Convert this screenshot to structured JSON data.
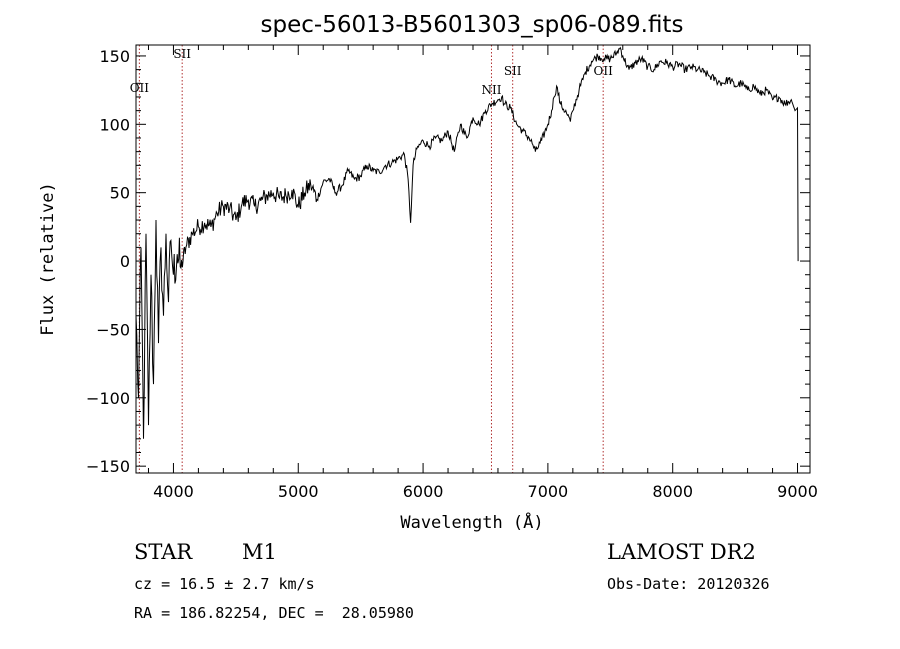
{
  "chart_data": {
    "type": "line",
    "title": "spec-56013-B5601303_sp06-089.fits",
    "xlabel": "Wavelength (Å)",
    "ylabel": "Flux (relative)",
    "xlim": [
      3700,
      9100
    ],
    "ylim": [
      -155,
      158
    ],
    "xticks": [
      4000,
      5000,
      6000,
      7000,
      8000,
      9000
    ],
    "yticks": [
      -150,
      -100,
      -50,
      0,
      50,
      100,
      150
    ],
    "grid": false,
    "series": [
      {
        "x": [
          3700,
          3720,
          3740,
          3760,
          3780,
          3800,
          3820,
          3840,
          3860,
          3880,
          3900,
          3920,
          3940,
          3960,
          3980,
          4000,
          4030,
          4060,
          4100,
          4150,
          4200,
          4250,
          4300,
          4350,
          4400,
          4450,
          4500,
          4550,
          4600,
          4650,
          4700,
          4750,
          4800,
          4850,
          4900,
          4950,
          5000,
          5050,
          5100,
          5150,
          5200,
          5250,
          5300,
          5350,
          5400,
          5450,
          5500,
          5550,
          5600,
          5650,
          5700,
          5750,
          5800,
          5850,
          5880,
          5900,
          5920,
          5950,
          6000,
          6050,
          6100,
          6150,
          6200,
          6250,
          6300,
          6350,
          6400,
          6450,
          6500,
          6550,
          6600,
          6630,
          6650,
          6700,
          6750,
          6800,
          6850,
          6880,
          6900,
          6950,
          7000,
          7030,
          7050,
          7070,
          7100,
          7150,
          7180,
          7200,
          7250,
          7300,
          7350,
          7400,
          7450,
          7500,
          7550,
          7580,
          7600,
          7650,
          7700,
          7750,
          7800,
          7850,
          7900,
          7950,
          8000,
          8050,
          8100,
          8150,
          8200,
          8250,
          8300,
          8350,
          8400,
          8450,
          8500,
          8550,
          8600,
          8650,
          8700,
          8750,
          8800,
          8850,
          8900,
          8950,
          8980,
          9000,
          9002,
          9005
        ],
        "y": [
          -40,
          -100,
          10,
          -130,
          20,
          -120,
          -10,
          -90,
          30,
          -60,
          10,
          -40,
          20,
          -30,
          15,
          -10,
          5,
          -5,
          10,
          20,
          25,
          28,
          25,
          35,
          40,
          38,
          30,
          42,
          45,
          40,
          44,
          48,
          50,
          46,
          48,
          52,
          40,
          50,
          56,
          45,
          58,
          60,
          50,
          55,
          66,
          60,
          62,
          70,
          66,
          65,
          70,
          72,
          75,
          78,
          60,
          28,
          70,
          82,
          88,
          84,
          90,
          88,
          95,
          80,
          100,
          90,
          105,
          100,
          110,
          115,
          118,
          120,
          115,
          112,
          100,
          95,
          90,
          85,
          80,
          88,
          100,
          110,
          120,
          128,
          115,
          108,
          102,
          110,
          125,
          138,
          146,
          150,
          148,
          148,
          152,
          156,
          150,
          140,
          145,
          148,
          142,
          140,
          146,
          145,
          142,
          144,
          140,
          142,
          140,
          138,
          135,
          132,
          130,
          133,
          128,
          130,
          125,
          128,
          122,
          125,
          118,
          120,
          115,
          118,
          110,
          112,
          60,
          0
        ]
      }
    ],
    "lines": [
      {
        "label": "OII",
        "x": 3727
      },
      {
        "label": "SII",
        "x": 4070
      },
      {
        "label": "NII",
        "x": 6548
      },
      {
        "label": "SII",
        "x": 6718
      },
      {
        "label": "OII",
        "x": 7443
      }
    ]
  },
  "info": {
    "object_class": "STAR",
    "subclass": "M1",
    "survey": "LAMOST DR2",
    "cz_line": "cz = 16.5 ± 2.7 km/s",
    "obs_date_line": "Obs-Date: 20120326",
    "radec_line": "RA = 186.82254, DEC =  28.05980"
  }
}
